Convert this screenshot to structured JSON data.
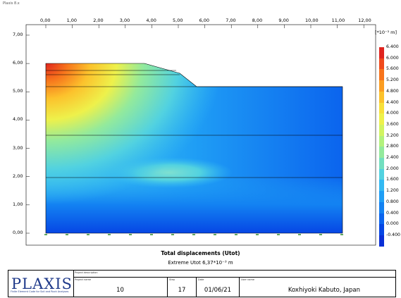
{
  "window": {
    "title": "Plaxis 8.x"
  },
  "plot": {
    "x_ticks": [
      "0,00",
      "1,00",
      "2,00",
      "3,00",
      "4,00",
      "5,00",
      "6,00",
      "7,00",
      "8,00",
      "9,00",
      "10,00",
      "11,00",
      "12,00"
    ],
    "y_ticks": [
      "7,00",
      "6,00",
      "5,00",
      "4,00",
      "3,00",
      "2,00",
      "1,00",
      "0,00"
    ],
    "title": "Total displacements (Utot)",
    "subtitle": "Extreme Utot 6,37*10⁻³ m"
  },
  "legend": {
    "unit": "[*10⁻³ m]",
    "values": [
      "6.400",
      "6.000",
      "5.600",
      "5.200",
      "4.800",
      "4.400",
      "4.000",
      "3.600",
      "3.200",
      "2.800",
      "2.400",
      "2.000",
      "1.600",
      "1.200",
      "0.800",
      "0.400",
      "0.000",
      "-0.400"
    ],
    "colors": [
      "#e0241e",
      "#f04a1c",
      "#f7741c",
      "#fb9d22",
      "#fcc22c",
      "#f8e03a",
      "#eef14b",
      "#d2f461",
      "#b3f27d",
      "#93ea9c",
      "#72dfbf",
      "#52d2e0",
      "#33b9f2",
      "#1f9ef5",
      "#1382f2",
      "#0b64ee",
      "#0646e4",
      "#0a2fd6"
    ]
  },
  "footer": {
    "logo_text": "PLAXIS",
    "logo_sub": "Finite Element Code for Soil and Rock Analyses",
    "project_description_label": "Project description",
    "project_name_label": "Project name",
    "project_name": "10",
    "step_label": "Step",
    "step": "17",
    "date_label": "Date",
    "date": "01/06/21",
    "user_label": "User name",
    "user": "Koxhiyoki Kabuto, Japan"
  }
}
